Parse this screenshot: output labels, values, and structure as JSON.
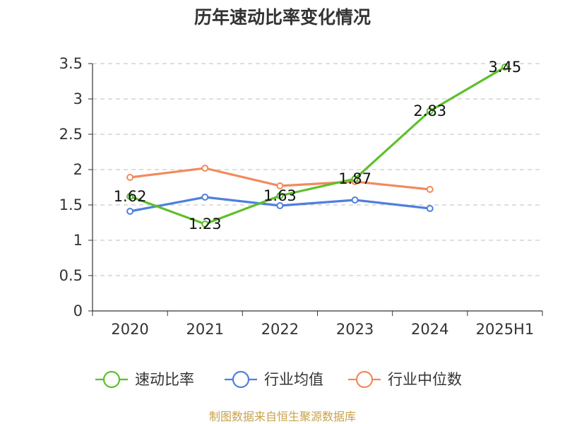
{
  "chart_data": {
    "type": "line",
    "title": "历年速动比率变化情况",
    "categories": [
      "2020",
      "2021",
      "2022",
      "2023",
      "2024",
      "2025H1"
    ],
    "ylim": [
      0,
      3.5
    ],
    "yticks": [
      "0",
      "0.5",
      "1",
      "1.5",
      "2",
      "2.5",
      "3",
      "3.5"
    ],
    "grid": true,
    "legend_position": "bottom",
    "series": [
      {
        "name": "速动比率",
        "color": "#5cc02a",
        "values": [
          1.62,
          1.23,
          1.63,
          1.87,
          2.83,
          3.45
        ],
        "labels": [
          "1.62",
          "1.23",
          "1.63",
          "1.87",
          "2.83",
          "3.45"
        ],
        "show_labels": true
      },
      {
        "name": "行业均值",
        "color": "#4f7fdd",
        "values": [
          1.41,
          1.61,
          1.49,
          1.57,
          1.45,
          null
        ],
        "show_labels": false
      },
      {
        "name": "行业中位数",
        "color": "#f28a5c",
        "values": [
          1.89,
          2.02,
          1.77,
          1.83,
          1.72,
          null
        ],
        "show_labels": false
      }
    ],
    "source": "制图数据来自恒生聚源数据库"
  }
}
